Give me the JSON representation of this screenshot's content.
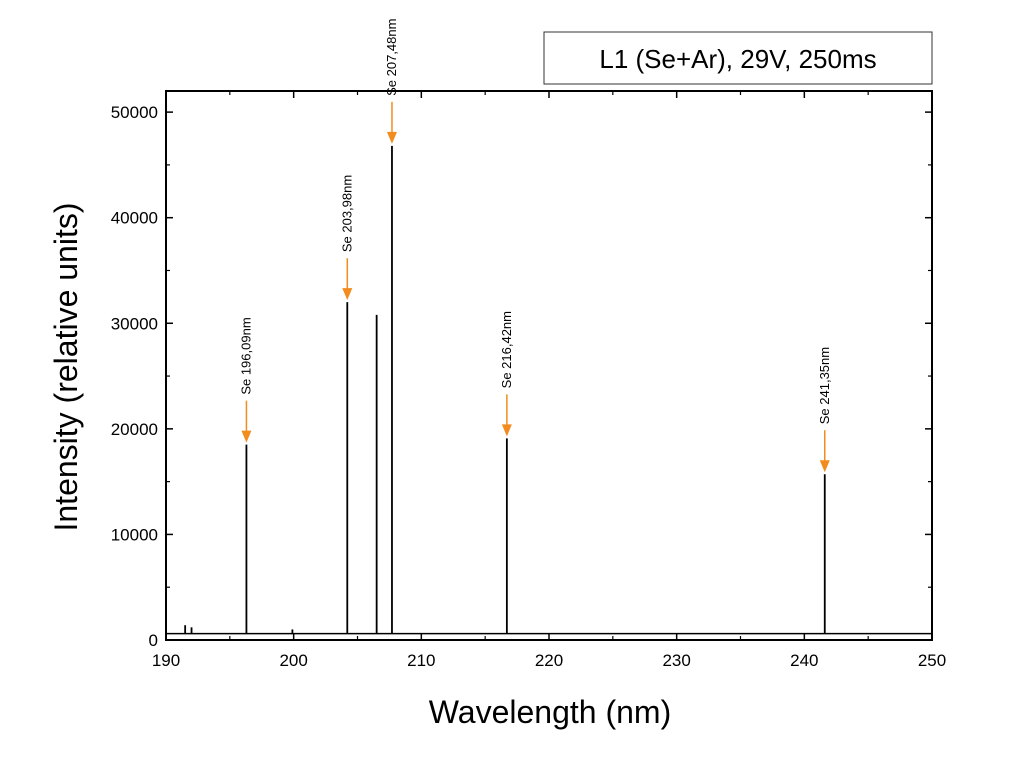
{
  "chart_data": {
    "type": "line",
    "title": "",
    "legend": {
      "text": "L1 (Se+Ar), 29V, 250ms",
      "placement": "top-right"
    },
    "xlabel": "Wavelength (nm)",
    "ylabel": "Intensity (relative units)",
    "xlim": [
      190,
      250
    ],
    "ylim": [
      0,
      52000
    ],
    "x_ticks": [
      190,
      200,
      210,
      220,
      230,
      240,
      250
    ],
    "y_ticks": [
      0,
      10000,
      20000,
      30000,
      40000,
      50000
    ],
    "baseline": 600,
    "grid": false,
    "series": [
      {
        "peaks": [
          {
            "x": 191.5,
            "y": 1400
          },
          {
            "x": 192.0,
            "y": 1200
          },
          {
            "x": 196.3,
            "y": 18500
          },
          {
            "x": 199.9,
            "y": 1000
          },
          {
            "x": 204.2,
            "y": 32000
          },
          {
            "x": 206.5,
            "y": 30800
          },
          {
            "x": 207.7,
            "y": 46800
          },
          {
            "x": 216.7,
            "y": 19100
          },
          {
            "x": 241.6,
            "y": 15700
          }
        ]
      }
    ],
    "annotations": [
      {
        "text": "Se 196,09nm",
        "x": 196.3,
        "y": 18500,
        "arrow_color": "#f28c1e"
      },
      {
        "text": "Se 203,98nm",
        "x": 204.2,
        "y": 32000,
        "arrow_color": "#f28c1e"
      },
      {
        "text": "Se 207,48nm",
        "x": 207.7,
        "y": 46800,
        "arrow_color": "#f28c1e"
      },
      {
        "text": "Se 216,42nm",
        "x": 216.7,
        "y": 19100,
        "arrow_color": "#f28c1e"
      },
      {
        "text": "Se 241,35nm",
        "x": 241.6,
        "y": 15700,
        "arrow_color": "#f28c1e"
      }
    ],
    "colors": {
      "line": "#000000",
      "arrow": "#f28c1e"
    }
  }
}
